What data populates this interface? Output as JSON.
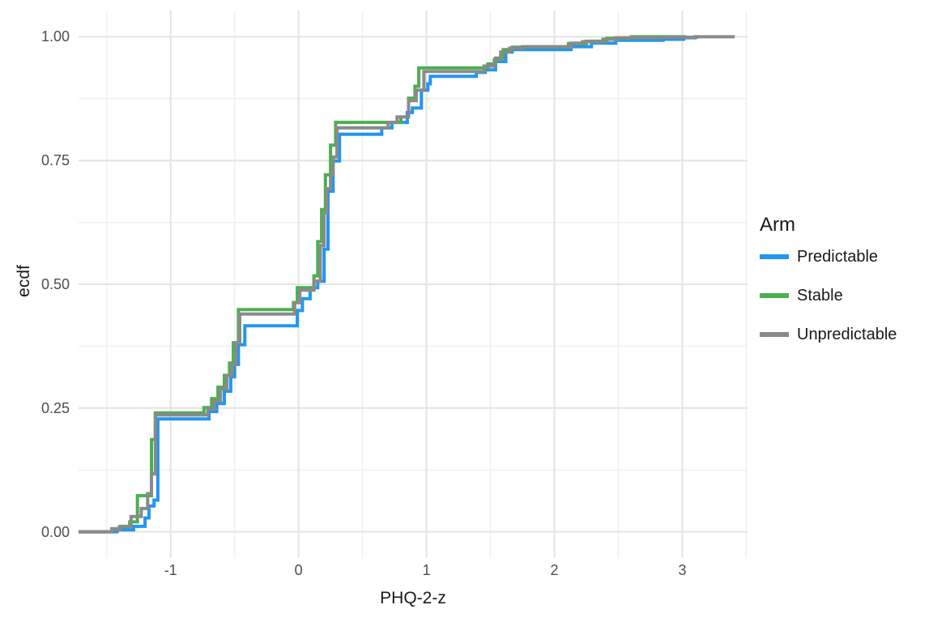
{
  "figure": {
    "background": "#ffffff"
  },
  "chart_data": {
    "type": "line",
    "variant": "ecdf-step",
    "title": "",
    "xlabel": "PHQ-2-z",
    "ylabel": "ecdf",
    "x_ticks": {
      "values": [
        -1,
        0,
        1,
        2,
        3
      ],
      "labels": [
        "-1",
        "0",
        "1",
        "2",
        "3"
      ]
    },
    "y_ticks": {
      "values": [
        0,
        0.25,
        0.5,
        0.75,
        1
      ],
      "labels": [
        "0.00",
        "0.25",
        "0.50",
        "0.75",
        "1.00"
      ]
    },
    "x_minor": [
      -1.5,
      -0.5,
      0.5,
      1.5,
      2.5,
      3.5
    ],
    "y_minor": [
      0.125,
      0.375,
      0.625,
      0.875
    ],
    "xlim": [
      -1.72,
      3.51
    ],
    "ylim": [
      -0.053,
      1.053
    ],
    "grid": {
      "major_color": "#e3e3e3",
      "minor_color": "#f0f0f0",
      "major_width": 2,
      "minor_width": 1.5
    },
    "axis_text_color": "#4d4d4d",
    "axis_title_color": "#1a1a1a",
    "line_width": 4,
    "legend": {
      "title": "Arm",
      "position": "right"
    },
    "series": [
      {
        "name": "Predictable",
        "color": "#2196f3",
        "x_end": 3.13,
        "points": [
          [
            -1.42,
            0.004
          ],
          [
            -1.29,
            0.011
          ],
          [
            -1.2,
            0.028
          ],
          [
            -1.17,
            0.052
          ],
          [
            -1.13,
            0.064
          ],
          [
            -1.1,
            0.228
          ],
          [
            -0.7,
            0.243
          ],
          [
            -0.64,
            0.259
          ],
          [
            -0.58,
            0.284
          ],
          [
            -0.53,
            0.313
          ],
          [
            -0.5,
            0.338
          ],
          [
            -0.47,
            0.378
          ],
          [
            -0.42,
            0.416
          ],
          [
            -0.01,
            0.447
          ],
          [
            0.03,
            0.471
          ],
          [
            0.09,
            0.493
          ],
          [
            0.15,
            0.506
          ],
          [
            0.2,
            0.571
          ],
          [
            0.23,
            0.688
          ],
          [
            0.27,
            0.749
          ],
          [
            0.32,
            0.803
          ],
          [
            0.65,
            0.816
          ],
          [
            0.73,
            0.827
          ],
          [
            0.85,
            0.847
          ],
          [
            0.89,
            0.856
          ],
          [
            0.96,
            0.892
          ],
          [
            1.01,
            0.905
          ],
          [
            1.03,
            0.92
          ],
          [
            1.39,
            0.928
          ],
          [
            1.46,
            0.933
          ],
          [
            1.54,
            0.95
          ],
          [
            1.62,
            0.969
          ],
          [
            1.67,
            0.974
          ],
          [
            2.13,
            0.98
          ],
          [
            2.29,
            0.987
          ],
          [
            2.48,
            0.993
          ],
          [
            2.85,
            0.995
          ],
          [
            3.01,
            0.998
          ],
          [
            3.1,
            1.0
          ]
        ]
      },
      {
        "name": "Stable",
        "color": "#4caf50",
        "x_end": 3.03,
        "points": [
          [
            -1.46,
            0.006
          ],
          [
            -1.4,
            0.01
          ],
          [
            -1.32,
            0.02
          ],
          [
            -1.26,
            0.073
          ],
          [
            -1.15,
            0.186
          ],
          [
            -1.12,
            0.24
          ],
          [
            -0.74,
            0.251
          ],
          [
            -0.68,
            0.269
          ],
          [
            -0.63,
            0.292
          ],
          [
            -0.58,
            0.316
          ],
          [
            -0.54,
            0.341
          ],
          [
            -0.51,
            0.382
          ],
          [
            -0.47,
            0.449
          ],
          [
            -0.04,
            0.463
          ],
          [
            -0.01,
            0.493
          ],
          [
            0.12,
            0.517
          ],
          [
            0.15,
            0.586
          ],
          [
            0.18,
            0.651
          ],
          [
            0.21,
            0.721
          ],
          [
            0.25,
            0.781
          ],
          [
            0.29,
            0.827
          ],
          [
            0.8,
            0.838
          ],
          [
            0.86,
            0.876
          ],
          [
            0.91,
            0.9
          ],
          [
            0.94,
            0.937
          ],
          [
            1.48,
            0.945
          ],
          [
            1.54,
            0.957
          ],
          [
            1.6,
            0.974
          ],
          [
            1.67,
            0.979
          ],
          [
            2.11,
            0.986
          ],
          [
            2.25,
            0.991
          ],
          [
            2.41,
            0.997
          ],
          [
            2.6,
            1.0
          ]
        ]
      },
      {
        "name": "Unpredictable",
        "color": "#8a8a8a",
        "x_end": 3.41,
        "points": [
          [
            -1.46,
            0.005
          ],
          [
            -1.39,
            0.011
          ],
          [
            -1.31,
            0.031
          ],
          [
            -1.23,
            0.047
          ],
          [
            -1.18,
            0.077
          ],
          [
            -1.15,
            0.117
          ],
          [
            -1.12,
            0.236
          ],
          [
            -0.71,
            0.248
          ],
          [
            -0.66,
            0.264
          ],
          [
            -0.61,
            0.289
          ],
          [
            -0.56,
            0.316
          ],
          [
            -0.52,
            0.338
          ],
          [
            -0.49,
            0.382
          ],
          [
            -0.46,
            0.44
          ],
          [
            -0.03,
            0.463
          ],
          [
            0.01,
            0.488
          ],
          [
            0.12,
            0.506
          ],
          [
            0.17,
            0.578
          ],
          [
            0.2,
            0.645
          ],
          [
            0.22,
            0.693
          ],
          [
            0.25,
            0.721
          ],
          [
            0.27,
            0.757
          ],
          [
            0.3,
            0.816
          ],
          [
            0.7,
            0.827
          ],
          [
            0.77,
            0.838
          ],
          [
            0.86,
            0.871
          ],
          [
            0.92,
            0.892
          ],
          [
            0.98,
            0.93
          ],
          [
            1.45,
            0.941
          ],
          [
            1.53,
            0.954
          ],
          [
            1.58,
            0.969
          ],
          [
            1.65,
            0.977
          ],
          [
            1.75,
            0.98
          ],
          [
            2.13,
            0.987
          ],
          [
            2.22,
            0.99
          ],
          [
            2.38,
            0.995
          ],
          [
            2.48,
            0.998
          ],
          [
            2.85,
            0.999
          ],
          [
            3.11,
            1.0
          ]
        ]
      }
    ]
  }
}
